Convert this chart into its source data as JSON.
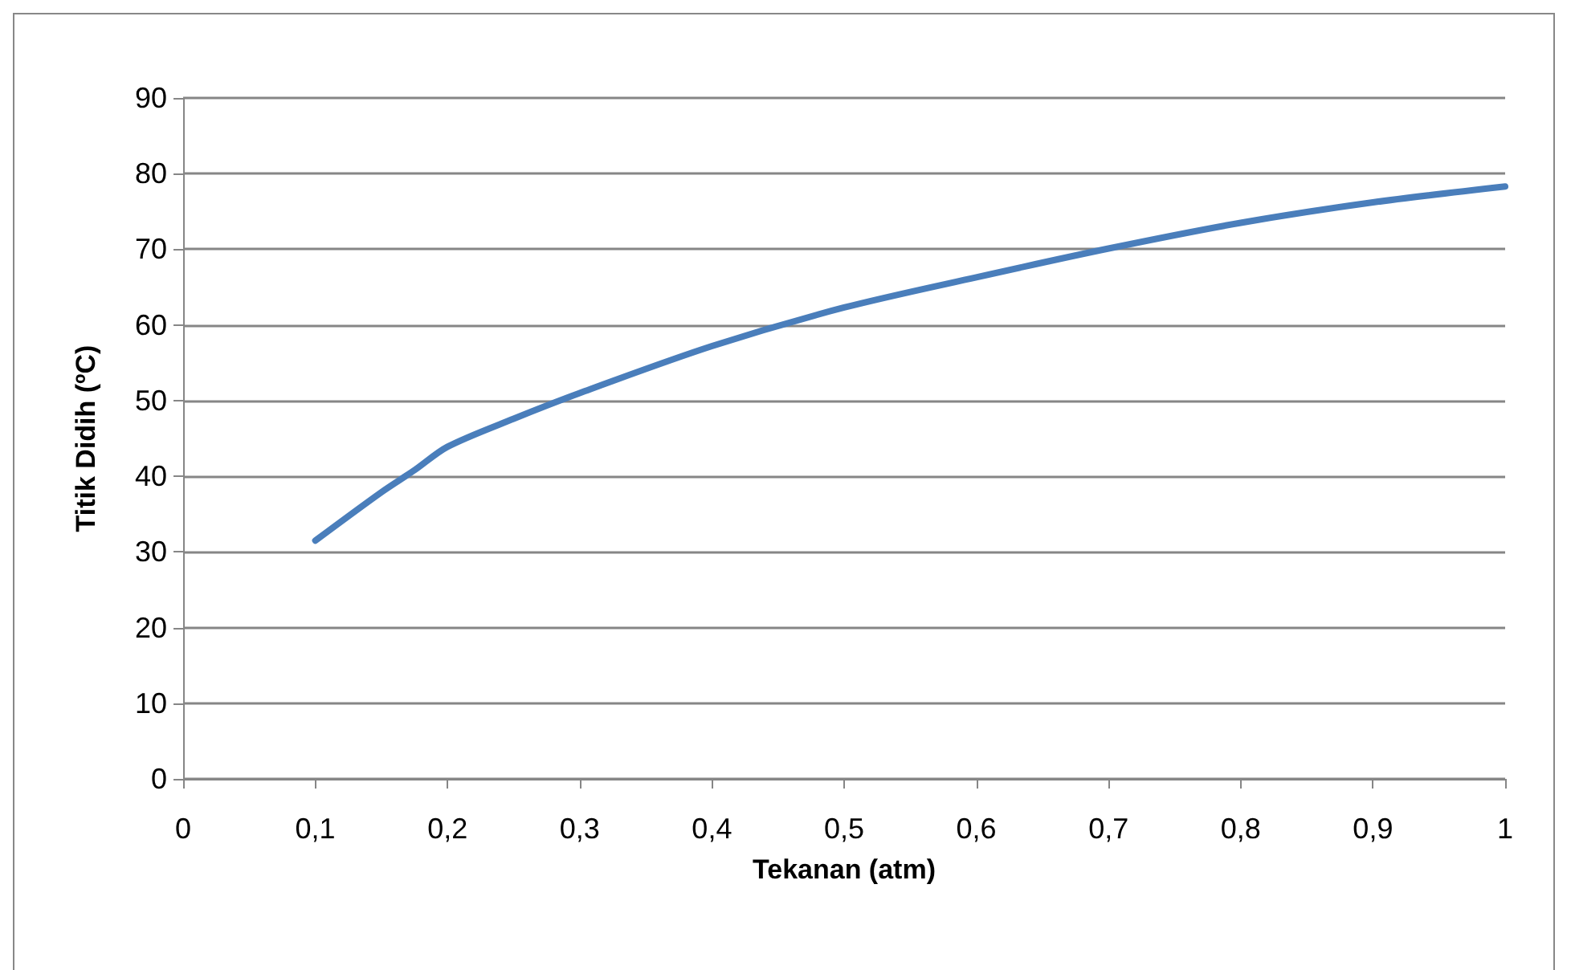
{
  "chart_data": {
    "type": "line",
    "xlabel": "Tekanan (atm)",
    "ylabel": "Titik Didih (ºC)",
    "x": [
      0.1,
      0.15,
      0.175,
      0.2,
      0.25,
      0.3,
      0.4,
      0.5,
      0.6,
      0.7,
      0.8,
      0.9,
      1.0
    ],
    "series": [
      {
        "color": "#4a7ebb",
        "values": [
          31.5,
          37.9,
          40.8,
          43.9,
          47.6,
          51.0,
          57.2,
          62.3,
          66.3,
          70.1,
          73.5,
          76.2,
          78.3
        ]
      }
    ],
    "xlim": [
      0,
      1
    ],
    "xticks": [
      0,
      {
        "value": 0.1,
        "label": "0,1"
      },
      {
        "value": 0.2,
        "label": "0,2"
      },
      {
        "value": 0.3,
        "label": "0,3"
      },
      {
        "value": 0.4,
        "label": "0,4"
      },
      {
        "value": 0.5,
        "label": "0,5"
      },
      {
        "value": 0.6,
        "label": "0,6"
      },
      {
        "value": 0.7,
        "label": "0,7"
      },
      {
        "value": 0.8,
        "label": "0,8"
      },
      {
        "value": 0.9,
        "label": "0,9"
      },
      1
    ],
    "ylim": [
      0,
      90
    ],
    "yticks": [
      0,
      10,
      20,
      30,
      40,
      50,
      60,
      70,
      80,
      90
    ],
    "grid": "y",
    "marker": "none",
    "line_style": "solid"
  }
}
